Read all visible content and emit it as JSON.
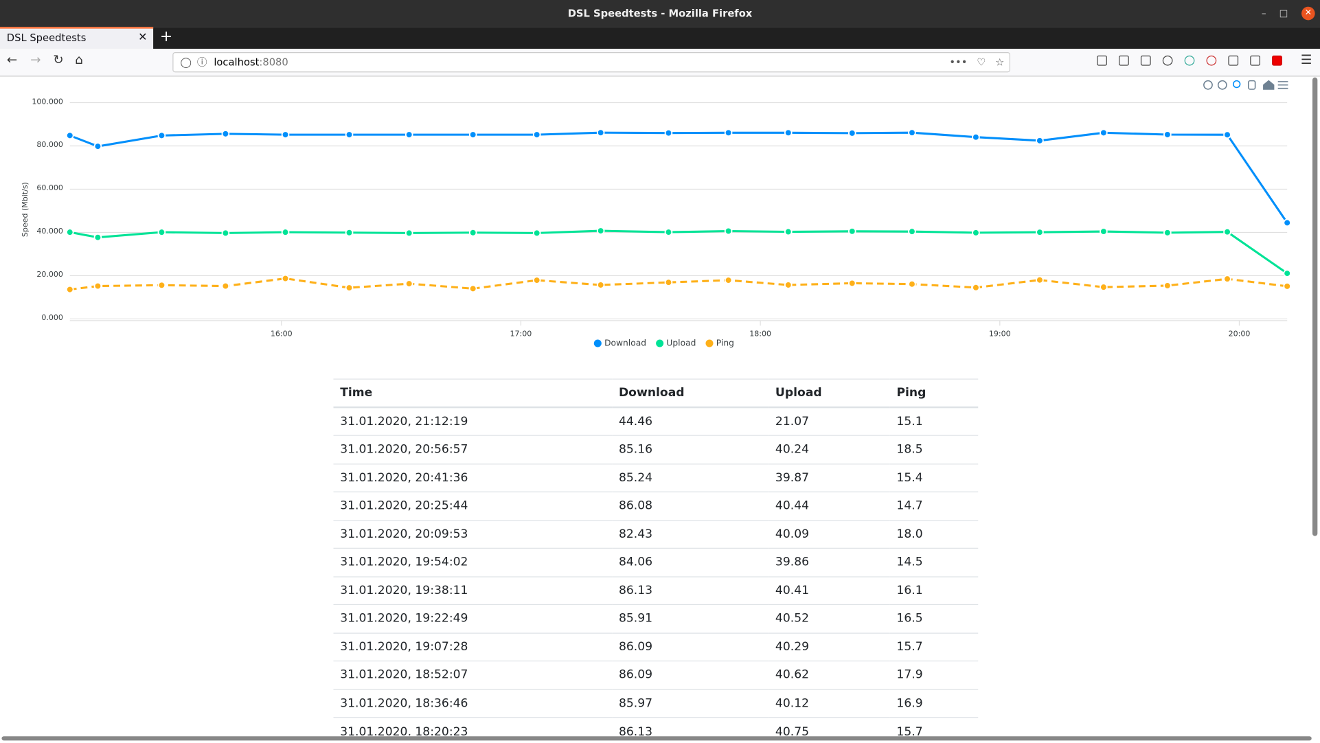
{
  "window": {
    "title": "DSL Speedtests - Mozilla Firefox"
  },
  "tab": {
    "title": "DSL Speedtests"
  },
  "address_bar": {
    "host": "localhost",
    "port": ":8080"
  },
  "chart_data": {
    "type": "line",
    "y_axis_label": "Speed (Mbit/s)",
    "x": [
      "15:07",
      "15:14",
      "15:30",
      "15:46",
      "16:01",
      "16:17",
      "16:32",
      "16:48",
      "17:04",
      "17:20",
      "17:37",
      "17:52",
      "18:07",
      "18:23",
      "18:38",
      "18:54",
      "19:10",
      "19:26",
      "19:42",
      "19:57",
      "20:12"
    ],
    "xlim": [
      "15:07",
      "20:12"
    ],
    "xticks": [
      "16:00",
      "17:00",
      "18:00",
      "19:00",
      "20:00"
    ],
    "ylim": [
      0,
      100
    ],
    "yticks": [
      {
        "value": 0,
        "label": "0.000"
      },
      {
        "value": 20,
        "label": "20.000"
      },
      {
        "value": 40,
        "label": "40.000"
      },
      {
        "value": 60,
        "label": "60.000"
      },
      {
        "value": 80,
        "label": "80.000"
      },
      {
        "value": 100,
        "label": "100.000"
      }
    ],
    "grid": true,
    "legend": "bottom",
    "series": [
      {
        "name": "Download",
        "color": "#008ffb",
        "dashed": false,
        "values": [
          84.8,
          79.8,
          84.8,
          85.6,
          85.2,
          85.2,
          85.2,
          85.2,
          85.2,
          86.13,
          85.97,
          86.09,
          86.09,
          85.91,
          86.13,
          84.06,
          82.43,
          86.08,
          85.24,
          85.16,
          44.46
        ]
      },
      {
        "name": "Upload",
        "color": "#00e396",
        "dashed": false,
        "values": [
          40.1,
          37.7,
          40.1,
          39.7,
          40.1,
          39.9,
          39.7,
          39.9,
          39.7,
          40.75,
          40.12,
          40.62,
          40.29,
          40.52,
          40.41,
          39.86,
          40.09,
          40.44,
          39.87,
          40.24,
          21.07
        ]
      },
      {
        "name": "Ping",
        "color": "#feb019",
        "dashed": true,
        "values": [
          13.6,
          15.2,
          15.6,
          15.2,
          18.7,
          14.4,
          16.3,
          14.0,
          17.9,
          15.7,
          16.9,
          17.9,
          15.7,
          16.5,
          16.1,
          14.5,
          18.0,
          14.7,
          15.4,
          18.5,
          15.1
        ]
      }
    ]
  },
  "table": {
    "header": [
      "Time",
      "Download",
      "Upload",
      "Ping"
    ],
    "rows": [
      [
        "31.01.2020, 21:12:19",
        "44.46",
        "21.07",
        "15.1"
      ],
      [
        "31.01.2020, 20:56:57",
        "85.16",
        "40.24",
        "18.5"
      ],
      [
        "31.01.2020, 20:41:36",
        "85.24",
        "39.87",
        "15.4"
      ],
      [
        "31.01.2020, 20:25:44",
        "86.08",
        "40.44",
        "14.7"
      ],
      [
        "31.01.2020, 20:09:53",
        "82.43",
        "40.09",
        "18.0"
      ],
      [
        "31.01.2020, 19:54:02",
        "84.06",
        "39.86",
        "14.5"
      ],
      [
        "31.01.2020, 19:38:11",
        "86.13",
        "40.41",
        "16.1"
      ],
      [
        "31.01.2020, 19:22:49",
        "85.91",
        "40.52",
        "16.5"
      ],
      [
        "31.01.2020, 19:07:28",
        "86.09",
        "40.29",
        "15.7"
      ],
      [
        "31.01.2020, 18:52:07",
        "86.09",
        "40.62",
        "17.9"
      ],
      [
        "31.01.2020, 18:36:46",
        "85.97",
        "40.12",
        "16.9"
      ],
      [
        "31.01.2020, 18:20:23",
        "86.13",
        "40.75",
        "15.7"
      ]
    ]
  }
}
